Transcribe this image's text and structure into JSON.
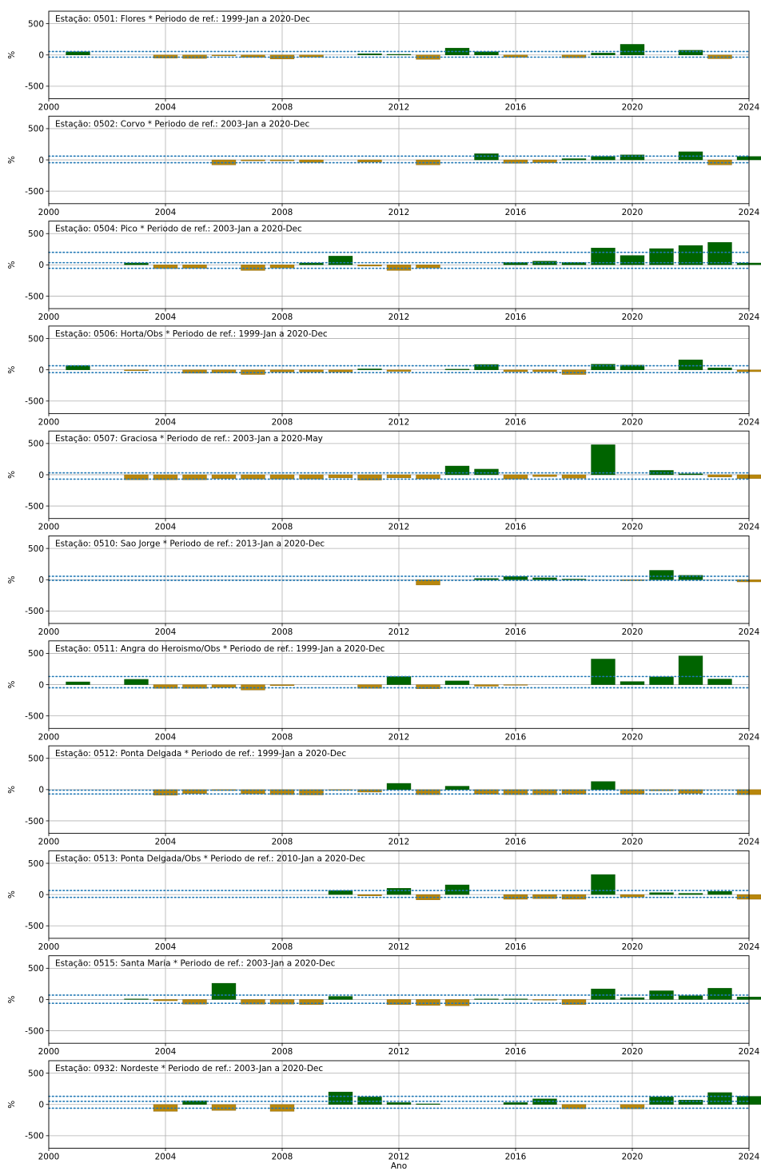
{
  "xlabel": "Ano",
  "ylabel": "%",
  "x_ticks": [
    "2000",
    "2004",
    "2008",
    "2012",
    "2016",
    "2020",
    "2024"
  ],
  "y_ticks": [
    "500",
    "0",
    "-500"
  ],
  "colors": {
    "positive": "#006400",
    "negative": "#b8860b",
    "threshold_line": "#1f77b4",
    "grid": "#b0b0b0"
  },
  "chart_data": [
    {
      "type": "bar",
      "title": "Estação: 0501: Flores * Periodo de ref.: 1999-Jan a 2020-Dec",
      "xlim": [
        2000,
        2024
      ],
      "ylim": [
        -700,
        700
      ],
      "thresholds": [
        55,
        -35
      ],
      "x": [
        2001,
        2004,
        2005,
        2006,
        2007,
        2008,
        2009,
        2011,
        2012,
        2013,
        2014,
        2015,
        2016,
        2018,
        2019,
        2020,
        2022,
        2023
      ],
      "values": [
        50,
        -50,
        -55,
        -15,
        -40,
        -65,
        -35,
        20,
        10,
        -70,
        110,
        50,
        -40,
        -45,
        30,
        170,
        75,
        -60
      ]
    },
    {
      "type": "bar",
      "title": "Estação: 0502: Corvo * Periodo de ref.: 2003-Jan a 2020-Dec",
      "xlim": [
        2000,
        2024
      ],
      "ylim": [
        -700,
        700
      ],
      "thresholds": [
        60,
        -45
      ],
      "x": [
        2006,
        2007,
        2008,
        2009,
        2011,
        2013,
        2015,
        2016,
        2017,
        2018,
        2019,
        2020,
        2022,
        2023,
        2024
      ],
      "values": [
        -80,
        -15,
        -15,
        -40,
        -35,
        -80,
        100,
        -55,
        -45,
        20,
        55,
        80,
        130,
        -80,
        55
      ]
    },
    {
      "type": "bar",
      "title": "Estação: 0504: Pico * Periodo de ref.: 2003-Jan a 2020-Dec",
      "xlim": [
        2000,
        2024
      ],
      "ylim": [
        -700,
        700
      ],
      "thresholds": [
        200,
        35,
        -55
      ],
      "x": [
        2003,
        2004,
        2005,
        2007,
        2008,
        2009,
        2010,
        2011,
        2012,
        2013,
        2016,
        2017,
        2018,
        2019,
        2020,
        2021,
        2022,
        2023,
        2024
      ],
      "values": [
        30,
        -60,
        -55,
        -90,
        -50,
        30,
        140,
        -20,
        -90,
        -50,
        40,
        60,
        40,
        270,
        150,
        260,
        310,
        360,
        30
      ]
    },
    {
      "type": "bar",
      "title": "Estação: 0506: Horta/Obs * Periodo de ref.: 1999-Jan a 2020-Dec",
      "xlim": [
        2000,
        2024
      ],
      "ylim": [
        -700,
        700
      ],
      "thresholds": [
        65,
        -45
      ],
      "x": [
        2001,
        2003,
        2005,
        2006,
        2007,
        2008,
        2009,
        2010,
        2011,
        2012,
        2014,
        2015,
        2016,
        2017,
        2018,
        2019,
        2020,
        2022,
        2023,
        2024
      ],
      "values": [
        70,
        -15,
        -55,
        -50,
        -75,
        -35,
        -35,
        -35,
        15,
        -25,
        10,
        85,
        -30,
        -30,
        -75,
        90,
        75,
        160,
        30,
        -30
      ]
    },
    {
      "type": "bar",
      "title": "Estação: 0507: Graciosa * Periodo de ref.: 2003-Jan a 2020-May",
      "xlim": [
        2000,
        2024
      ],
      "ylim": [
        -700,
        700
      ],
      "thresholds": [
        30,
        -70
      ],
      "x": [
        2003,
        2004,
        2005,
        2006,
        2007,
        2008,
        2009,
        2010,
        2011,
        2012,
        2013,
        2014,
        2015,
        2016,
        2017,
        2018,
        2019,
        2021,
        2022,
        2023,
        2024
      ],
      "values": [
        -80,
        -80,
        -80,
        -60,
        -70,
        -70,
        -70,
        -50,
        -85,
        -50,
        -65,
        140,
        90,
        -70,
        -30,
        -55,
        480,
        70,
        15,
        -35,
        -60
      ]
    },
    {
      "type": "bar",
      "title": "Estação: 0510: Sao Jorge * Periodo de ref.: 2013-Jan a 2020-Dec",
      "xlim": [
        2000,
        2024
      ],
      "ylim": [
        -700,
        700
      ],
      "thresholds": [
        55,
        -10
      ],
      "x": [
        2013,
        2015,
        2016,
        2017,
        2018,
        2020,
        2021,
        2022,
        2024
      ],
      "values": [
        -85,
        20,
        50,
        30,
        10,
        -15,
        150,
        70,
        -35
      ]
    },
    {
      "type": "bar",
      "title": "Estação: 0511: Angra do Heroismo/Obs * Periodo de ref.: 1999-Jan a 2020-Dec",
      "xlim": [
        2000,
        2024
      ],
      "ylim": [
        -700,
        700
      ],
      "thresholds": [
        130,
        -50
      ],
      "x": [
        2001,
        2003,
        2004,
        2005,
        2006,
        2007,
        2008,
        2011,
        2012,
        2013,
        2014,
        2015,
        2016,
        2019,
        2020,
        2021,
        2022,
        2023
      ],
      "values": [
        45,
        85,
        -60,
        -60,
        -45,
        -85,
        -15,
        -60,
        130,
        -65,
        60,
        -25,
        -10,
        410,
        50,
        125,
        460,
        90
      ]
    },
    {
      "type": "bar",
      "title": "Estação: 0512: Ponta Delgada * Periodo de ref.: 1999-Jan a 2020-Dec",
      "xlim": [
        2000,
        2024
      ],
      "ylim": [
        -700,
        700
      ],
      "thresholds": [
        -10,
        -70
      ],
      "x": [
        2004,
        2005,
        2006,
        2007,
        2008,
        2009,
        2010,
        2011,
        2012,
        2013,
        2014,
        2015,
        2016,
        2017,
        2018,
        2019,
        2020,
        2021,
        2022,
        2024
      ],
      "values": [
        -90,
        -65,
        -15,
        -70,
        -80,
        -85,
        -10,
        -40,
        100,
        -80,
        55,
        -75,
        -80,
        -80,
        -75,
        130,
        -75,
        -20,
        -60,
        -80
      ]
    },
    {
      "type": "bar",
      "title": "Estação: 0513: Ponta Delgada/Obs * Periodo de ref.: 2010-Jan a 2020-Dec",
      "xlim": [
        2000,
        2024
      ],
      "ylim": [
        -700,
        700
      ],
      "thresholds": [
        65,
        -45
      ],
      "x": [
        2010,
        2011,
        2012,
        2013,
        2014,
        2016,
        2017,
        2018,
        2019,
        2020,
        2021,
        2022,
        2023,
        2024
      ],
      "values": [
        65,
        -20,
        100,
        -85,
        155,
        -75,
        -65,
        -75,
        320,
        -40,
        30,
        20,
        50,
        -75
      ]
    },
    {
      "type": "bar",
      "title": "Estação: 0515: Santa Maria * Periodo de ref.: 2003-Jan a 2020-Dec",
      "xlim": [
        2000,
        2024
      ],
      "ylim": [
        -700,
        700
      ],
      "thresholds": [
        70,
        -60
      ],
      "x": [
        2003,
        2004,
        2005,
        2006,
        2007,
        2008,
        2009,
        2010,
        2012,
        2013,
        2014,
        2015,
        2016,
        2017,
        2018,
        2019,
        2020,
        2021,
        2022,
        2023,
        2024
      ],
      "values": [
        10,
        -20,
        -75,
        260,
        -75,
        -75,
        -80,
        50,
        -80,
        -95,
        -100,
        10,
        10,
        -10,
        -80,
        170,
        30,
        140,
        60,
        180,
        40
      ]
    },
    {
      "type": "bar",
      "title": "Estação: 0932: Nordeste * Periodo de ref.: 2003-Jan a 2020-Dec",
      "xlim": [
        2000,
        2024
      ],
      "ylim": [
        -700,
        700
      ],
      "thresholds": [
        130,
        50,
        -60
      ],
      "x": [
        2004,
        2005,
        2006,
        2008,
        2010,
        2011,
        2012,
        2013,
        2016,
        2017,
        2018,
        2020,
        2021,
        2022,
        2023,
        2024
      ],
      "values": [
        -110,
        60,
        -95,
        -110,
        200,
        120,
        30,
        10,
        30,
        90,
        -70,
        -70,
        120,
        70,
        190,
        130
      ]
    }
  ]
}
